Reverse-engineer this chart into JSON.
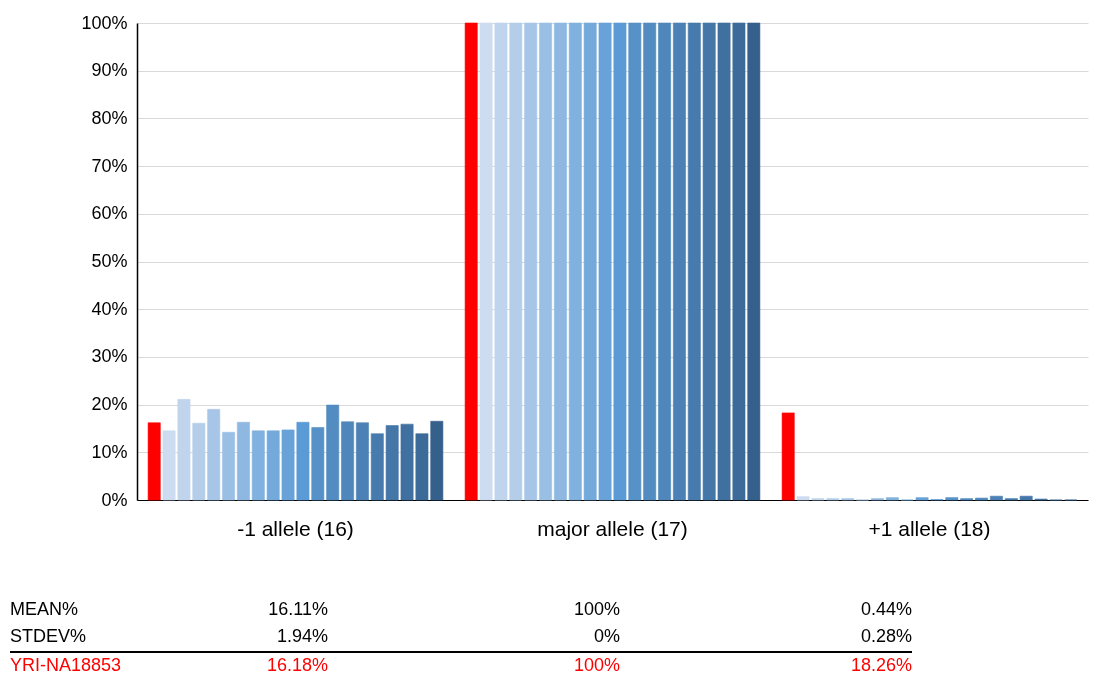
{
  "chart_data": {
    "type": "bar",
    "categories": [
      "-1 allele (16)",
      "major allele (17)",
      "+1 allele (18)"
    ],
    "ylim": [
      0,
      100
    ],
    "yticks": [
      {
        "value": 0,
        "label": "0%"
      },
      {
        "value": 10,
        "label": "10%"
      },
      {
        "value": 20,
        "label": "20%"
      },
      {
        "value": 30,
        "label": "30%"
      },
      {
        "value": 40,
        "label": "40%"
      },
      {
        "value": 50,
        "label": "50%"
      },
      {
        "value": 60,
        "label": "60%"
      },
      {
        "value": 70,
        "label": "70%"
      },
      {
        "value": 80,
        "label": "80%"
      },
      {
        "value": 90,
        "label": "90%"
      },
      {
        "value": 100,
        "label": "100%"
      }
    ],
    "grid": "y",
    "legend": false,
    "annotations": [
      "MEAN%",
      "16.11%",
      "100%",
      "0.44%",
      "STDEV%",
      "1.94%",
      "0%",
      "0.28%"
    ],
    "series": [
      {
        "name": "YRI-NA18853",
        "color": "#ff0000",
        "values": [
          16.18,
          100,
          18.26
        ],
        "value_labels": [
          "16.18%",
          "100%",
          "18.26%"
        ]
      },
      {
        "color": "#cddcf0",
        "values": [
          14.5,
          100,
          0.7
        ]
      },
      {
        "color": "#c0d5ed",
        "values": [
          21.1,
          100,
          0.3
        ]
      },
      {
        "color": "#b4ceea",
        "values": [
          16.1,
          100,
          0.3
        ]
      },
      {
        "color": "#a7c6e7",
        "values": [
          19.0,
          100,
          0.3
        ]
      },
      {
        "color": "#9abfe4",
        "values": [
          14.2,
          100,
          0
        ]
      },
      {
        "color": "#8eb8e1",
        "values": [
          16.3,
          100,
          0.3
        ]
      },
      {
        "color": "#81b1de",
        "values": [
          14.5,
          100,
          0.5
        ]
      },
      {
        "color": "#74aadb",
        "values": [
          14.5,
          100,
          0
        ]
      },
      {
        "color": "#68a2d8",
        "values": [
          14.7,
          100,
          0.5
        ]
      },
      {
        "color": "#5b9bd5",
        "values": [
          16.3,
          100,
          0.1
        ]
      },
      {
        "color": "#5691c8",
        "values": [
          15.2,
          100,
          0.5
        ]
      },
      {
        "color": "#528cc1",
        "values": [
          19.9,
          100,
          0.3
        ]
      },
      {
        "color": "#4f86bb",
        "values": [
          16.4,
          100,
          0.4
        ]
      },
      {
        "color": "#4b81b4",
        "values": [
          16.2,
          100,
          0.8
        ]
      },
      {
        "color": "#477bad",
        "values": [
          13.9,
          100,
          0.3
        ]
      },
      {
        "color": "#4476a7",
        "values": [
          15.6,
          100,
          0.8
        ]
      },
      {
        "color": "#4070a0",
        "values": [
          15.9,
          100,
          0.2
        ]
      },
      {
        "color": "#3c6b99",
        "values": [
          13.9,
          100,
          0
        ]
      },
      {
        "color": "#35608c",
        "values": [
          16.5,
          100,
          0
        ]
      }
    ]
  }
}
